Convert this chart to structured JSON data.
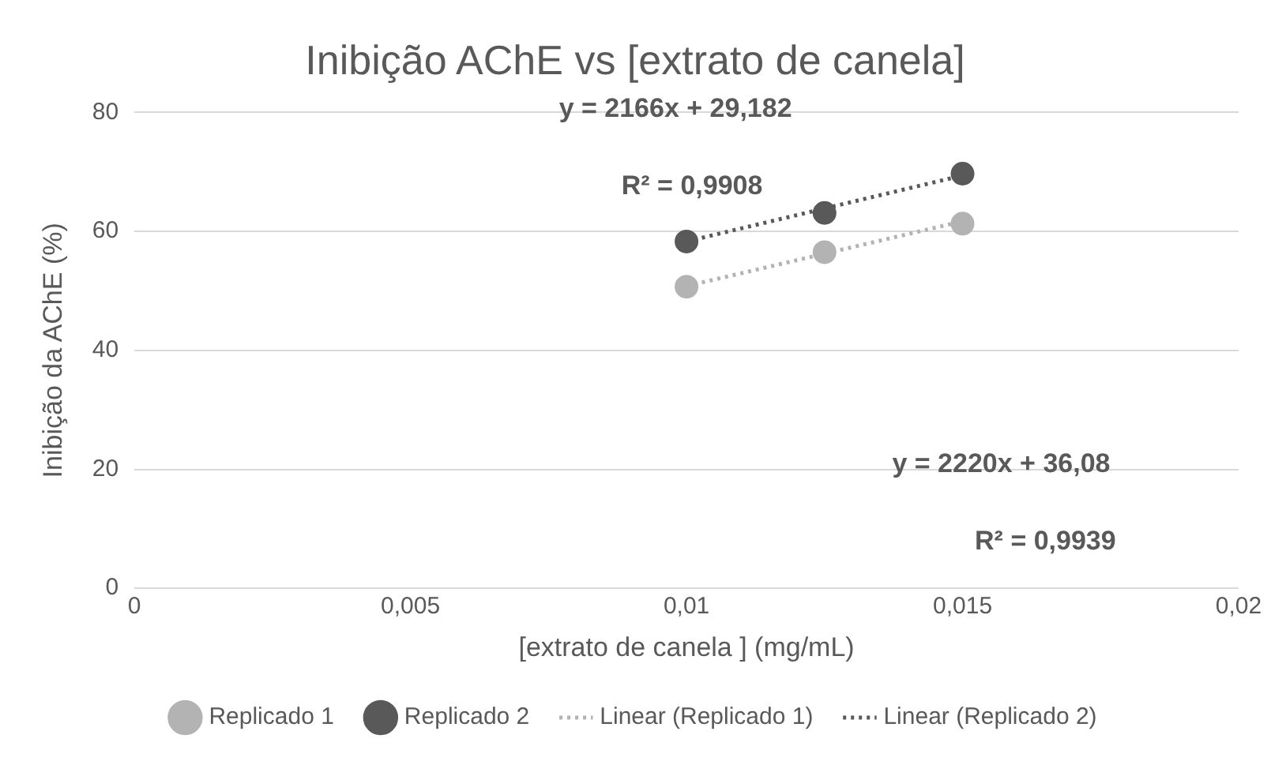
{
  "chart_data": {
    "type": "scatter",
    "title": "Inibição AChE vs [extrato de canela]",
    "xlabel": "[extrato de canela ] (mg/mL)",
    "ylabel": "Inibição da AChE (%)",
    "xlim": [
      0,
      0.02
    ],
    "xticks": [
      0,
      {
        "value": 0.005,
        "label": "0,005"
      },
      {
        "value": 0.01,
        "label": "0,01"
      },
      {
        "value": 0.015,
        "label": "0,015"
      },
      {
        "value": 0.02,
        "label": "0,02"
      }
    ],
    "ylim": [
      0,
      80
    ],
    "yticks": [
      0,
      20,
      40,
      60,
      80
    ],
    "grid": "y",
    "legend": "bottom",
    "series": [
      {
        "name": "Replicado 1",
        "type": "scatter",
        "marker": "circle",
        "color": "#b3b3b3",
        "x": [
          0.01,
          0.0125,
          0.015
        ],
        "values": [
          50.7,
          56.5,
          61.3
        ]
      },
      {
        "name": "Replicado 2",
        "type": "scatter",
        "marker": "circle",
        "color": "#595959",
        "x": [
          0.01,
          0.0125,
          0.015
        ],
        "values": [
          58.3,
          63.1,
          69.7
        ]
      },
      {
        "name": "Linear (Replicado 1)",
        "type": "line",
        "line_style": "dotted",
        "color": "#b3b3b3",
        "x": [
          0.01,
          0.015
        ],
        "values": [
          50.8,
          61.7
        ]
      },
      {
        "name": "Linear (Replicado 2)",
        "type": "line",
        "line_style": "dotted",
        "color": "#595959",
        "x": [
          0.01,
          0.015
        ],
        "values": [
          58.3,
          69.4
        ]
      }
    ],
    "annotations": [
      "y = 2166x + 29,182",
      "R² = 0,9908",
      "y = 2220x + 36,08",
      "R² = 0,9939"
    ]
  }
}
